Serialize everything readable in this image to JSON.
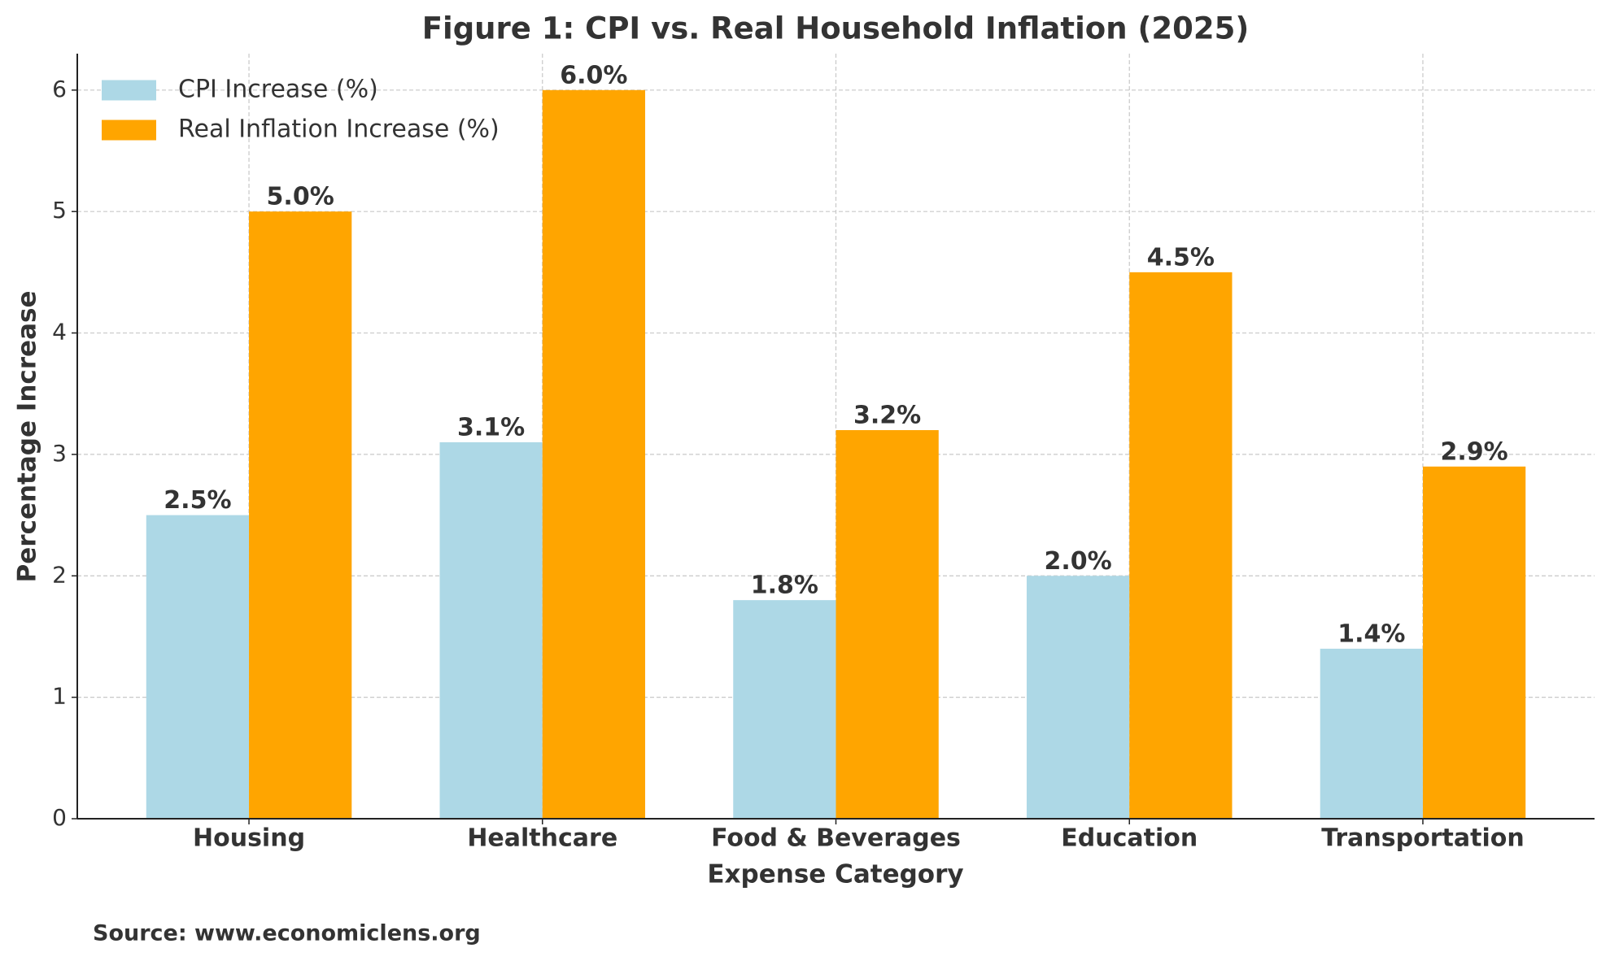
{
  "chart_data": {
    "type": "bar",
    "title": "Figure 1: CPI vs. Real Household Inflation (2025)",
    "x_label": "Expense Category",
    "y_label": "Percentage Increase",
    "source": "Source: www.economiclens.org",
    "categories": [
      "Housing",
      "Healthcare",
      "Food & Beverages",
      "Education",
      "Transportation"
    ],
    "series": [
      {
        "name": "CPI Increase (%)",
        "color": "#add8e6",
        "values": [
          2.5,
          3.1,
          1.8,
          2.0,
          1.4
        ],
        "value_labels": [
          "2.5%",
          "3.1%",
          "1.8%",
          "2.0%",
          "1.4%"
        ]
      },
      {
        "name": "Real Inflation Increase (%)",
        "color": "#ffa500",
        "values": [
          5.0,
          6.0,
          3.2,
          4.5,
          2.9
        ],
        "value_labels": [
          "5.0%",
          "6.0%",
          "3.2%",
          "4.5%",
          "2.9%"
        ]
      }
    ],
    "ylim": [
      0,
      6.3
    ],
    "yticks": [
      0,
      1,
      2,
      3,
      4,
      5,
      6
    ],
    "grid": true,
    "legend": "upper left"
  }
}
